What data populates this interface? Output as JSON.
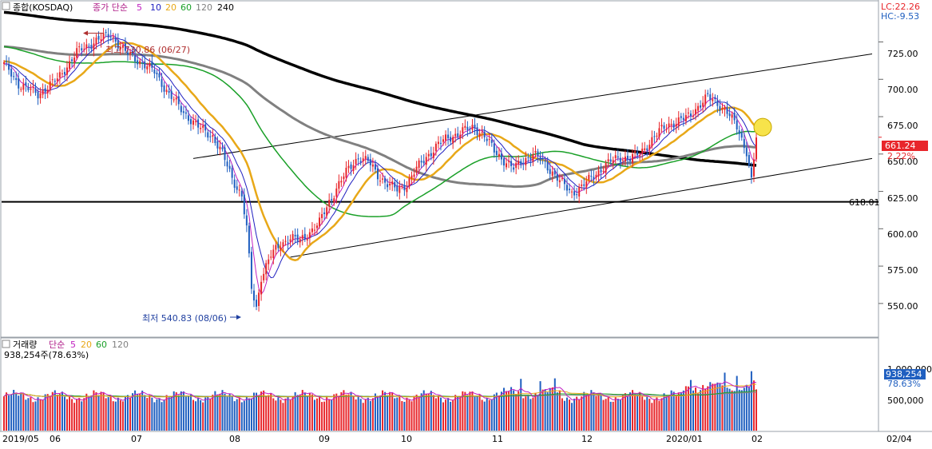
{
  "chart_data": [
    {
      "type": "candlestick",
      "header": {
        "indicator_label": "종합(KOSDAQ)",
        "ma_prefix": "종가 단순",
        "ma_periods": [
          "5",
          "10",
          "20",
          "60",
          "120",
          "240"
        ]
      },
      "lc_label": "LC:22.26",
      "hc_label": "HC:-9.53",
      "y_ticks": [
        "725.00",
        "700.00",
        "675.00",
        "650.00",
        "625.00",
        "600.00",
        "575.00",
        "550.00"
      ],
      "ylim": [
        528,
        752
      ],
      "current_price_label": "661.24",
      "current_change_label": "2.22%",
      "current_price": 661.24,
      "support_line_label": "618.01",
      "support_value": 618.01,
      "high_annotation": "최고 730.86 (06/27)",
      "low_annotation": "최저 540.83 (08/06)",
      "high_value": 730.86,
      "low_value": 540.83,
      "x_ticks": [
        "2019/05",
        "06",
        "07",
        "08",
        "09",
        "10",
        "11",
        "12",
        "2020/01",
        "02",
        "02/04"
      ],
      "colors": {
        "up": "#e8262b",
        "down": "#1f5fc0",
        "ma5": "#c020c0",
        "ma10": "#2020c0",
        "ma20": "#e8a818",
        "ma60": "#1aa028",
        "ma120": "#808080",
        "ma240": "#000000"
      }
    },
    {
      "type": "bar",
      "header": {
        "indicator_label": "거래량",
        "ma_prefix": "단순",
        "ma_periods": [
          "5",
          "20",
          "60",
          "120"
        ],
        "summary": "938,254주(78.63%)"
      },
      "y_ticks": [
        "1,000,000",
        "500,000"
      ],
      "current_value_label": "938,254",
      "current_pct_label": "78.63%"
    }
  ]
}
